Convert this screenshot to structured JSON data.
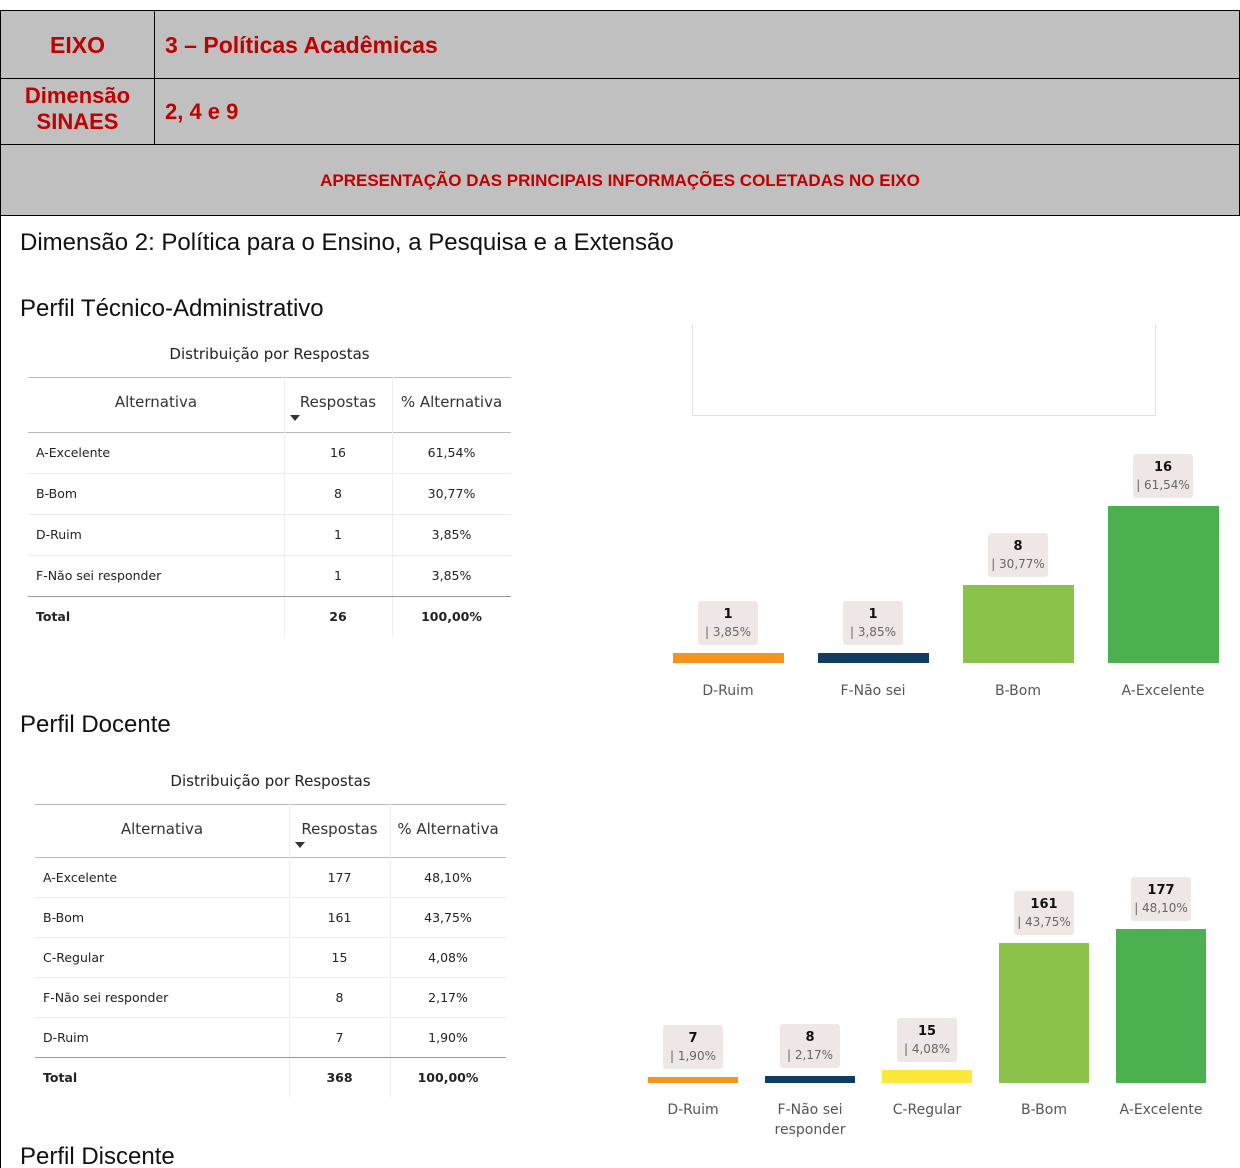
{
  "header": {
    "rows": [
      {
        "label": "EIXO",
        "value": "3 – Políticas Acadêmicas"
      },
      {
        "label": "Dimensão SINAES",
        "value": "2, 4 e 9"
      }
    ],
    "banner": "APRESENTAÇÃO DAS PRINCIPAIS INFORMAÇÕES COLETADAS NO EIXO"
  },
  "content": {
    "heading": "Dimensão 2: Política para o Ensino, a Pesquisa e a Extensão",
    "sections": [
      {
        "title": "Perfil Técnico-Administrativo",
        "table": {
          "caption": "Distribuição por Respostas",
          "columns": [
            "Alternativa",
            "Respostas",
            "% Alternativa"
          ],
          "rows": [
            [
              "A-Excelente",
              "16",
              "61,54%"
            ],
            [
              "B-Bom",
              "8",
              "30,77%"
            ],
            [
              "D-Ruim",
              "1",
              "3,85%"
            ],
            [
              "F-Não sei responder",
              "1",
              "3,85%"
            ]
          ],
          "total": [
            "Total",
            "26",
            "100,00%"
          ]
        },
        "chart": {
          "type": "bar",
          "categories": [
            "D-Ruim",
            "F-Não sei",
            "B-Bom",
            "A-Excelente"
          ],
          "values": [
            1,
            1,
            8,
            16
          ],
          "percent_labels": [
            "| 3,85%",
            "| 3,85%",
            "| 30,77%",
            "| 61,54%"
          ],
          "colors": [
            "#f7941d",
            "#123d63",
            "#8bc34a",
            "#4caf50"
          ]
        }
      },
      {
        "title": "Perfil Docente",
        "table": {
          "caption": "Distribuição por Respostas",
          "columns": [
            "Alternativa",
            "Respostas",
            "% Alternativa"
          ],
          "rows": [
            [
              "A-Excelente",
              "177",
              "48,10%"
            ],
            [
              "B-Bom",
              "161",
              "43,75%"
            ],
            [
              "C-Regular",
              "15",
              "4,08%"
            ],
            [
              "F-Não sei responder",
              "8",
              "2,17%"
            ],
            [
              "D-Ruim",
              "7",
              "1,90%"
            ]
          ],
          "total": [
            "Total",
            "368",
            "100,00%"
          ]
        },
        "chart": {
          "type": "bar",
          "categories": [
            "D-Ruim",
            "F-Não sei responder",
            "C-Regular",
            "B-Bom",
            "A-Excelente"
          ],
          "values": [
            7,
            8,
            15,
            161,
            177
          ],
          "percent_labels": [
            "| 1,90%",
            "| 2,17%",
            "| 4,08%",
            "| 43,75%",
            "| 48,10%"
          ],
          "colors": [
            "#f7941d",
            "#123d63",
            "#fde73a",
            "#8bc34a",
            "#4caf50"
          ]
        }
      },
      {
        "title": "Perfil Discente"
      }
    ]
  }
}
